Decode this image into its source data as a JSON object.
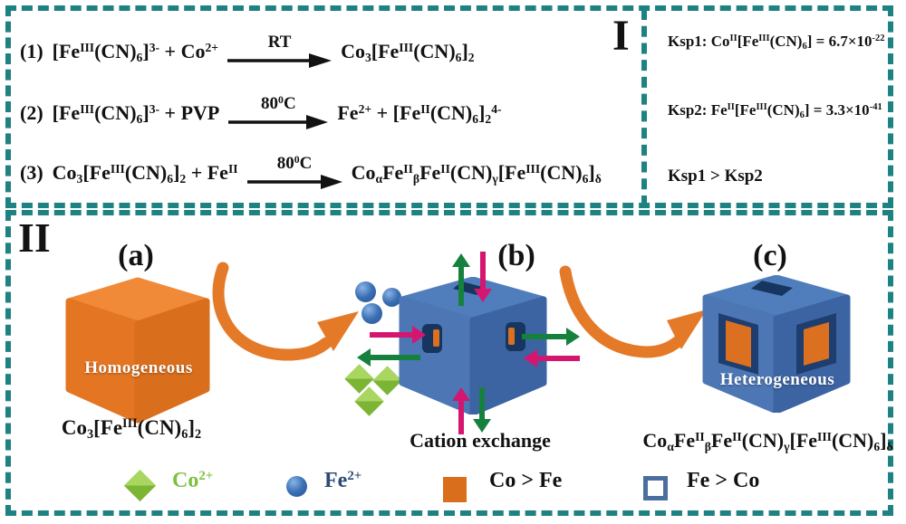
{
  "colors": {
    "teal": "#1e8282",
    "ink": "#121212",
    "magenta": "#d4166e",
    "green": "#16813c",
    "orange-top": "#f08a38",
    "orange-left": "#e47523",
    "orange-right": "#d96e1c",
    "arrow-orange": "#e47a28",
    "blue-top": "#507ebc",
    "blue-left": "#4c77b4",
    "blue-right": "#3c64a2",
    "hole-navy": "#16365f",
    "window-frame": "#1e3e6f",
    "window-orange": "#dc7021",
    "sphere-blue": "#3a6fb5",
    "diamond-light": "#a9d661",
    "diamond-dark": "#7cb434",
    "legend-co-green": "#7cc142",
    "legend-fe-navy": "#2c4a76",
    "frame-blue": "#4a6e9e"
  },
  "section1": {
    "label": "I",
    "equations": [
      {
        "num": "(1)",
        "lhs": "[Fe^{III}(CN)_{6}]^{3-} +  Co^{2+}",
        "cond": "RT",
        "rhs": "Co_{3}[Fe^{III}(CN)_{6}]_{2}"
      },
      {
        "num": "(2)",
        "lhs": "[Fe^{III}(CN)_{6}]^{3-} + PVP",
        "cond": "80^{0}C",
        "rhs": "Fe^{2+} +  [Fe^{II}(CN)_{6}]_{2}^{4-}"
      },
      {
        "num": "(3)",
        "lhs": "Co_{3}[Fe^{III}(CN)_{6}]_{2} + Fe^{II}",
        "cond": "80^{0}C",
        "rhs": "Co_{α}Fe^{II}_{β}Fe^{II}(CN)_{γ}[Fe^{III}(CN)_{6}]_{δ}"
      }
    ],
    "ksp1": "Ksp1:  Co^{II}[Fe^{III}(CN)_{6}]  = 6.7×10^{-22}",
    "ksp2": "Ksp2:  Fe^{II}[Fe^{III}(CN)_{6}]  = 3.3×10^{-41}",
    "ksp_compare": "Ksp1  >  Ksp2"
  },
  "section2": {
    "label": "II",
    "panel_a": {
      "tag": "(a)",
      "cube_label": "Homogeneous",
      "formula": "Co_{3}[Fe^{III}(CN)_{6}]_{2}"
    },
    "panel_b": {
      "tag": "(b)",
      "caption": "Cation exchange"
    },
    "panel_c": {
      "tag": "(c)",
      "cube_label": "Heterogeneous",
      "formula": "Co_{α}Fe^{II}_{β}Fe^{II}(CN)_{γ}[Fe^{III}(CN)_{6}]_{δ}"
    },
    "legend": [
      {
        "icon": "green-diamond-icon",
        "label": "Co^{2+}"
      },
      {
        "icon": "blue-sphere-icon",
        "label": "Fe^{2+}"
      },
      {
        "icon": "orange-square-icon",
        "label": "Co > Fe"
      },
      {
        "icon": "hollow-square-icon",
        "label": "Fe > Co"
      }
    ]
  }
}
